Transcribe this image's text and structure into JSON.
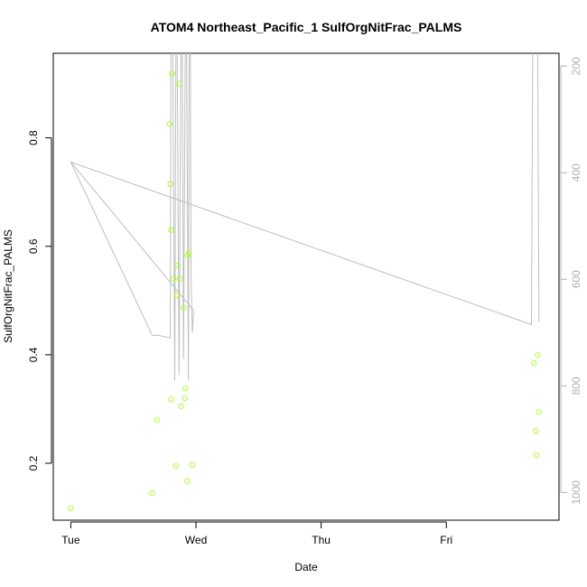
{
  "chart_data": {
    "type": "scatter",
    "title": "ATOM4 Northeast_Pacific_1 SulfOrgNitFrac_PALMS",
    "xlabel": "Date",
    "ylabel": "SulfOrgNitFrac_PALMS",
    "x_ticks": [
      {
        "x": 0,
        "label": "Tue"
      },
      {
        "x": 1,
        "label": "Wed"
      },
      {
        "x": 2,
        "label": "Thu"
      },
      {
        "x": 3,
        "label": "Fri"
      }
    ],
    "y_ticks": [
      0.2,
      0.4,
      0.6,
      0.8
    ],
    "y_tick_labels": [
      "0.2",
      "0.4",
      "0.6",
      "0.8"
    ],
    "y2_ticks": [
      200,
      400,
      600,
      800,
      1000
    ],
    "y2_tick_labels": [
      "200",
      "400",
      "600",
      "800",
      "1000"
    ],
    "xlim": [
      -0.14,
      3.9
    ],
    "ylim": [
      0.095,
      0.956
    ],
    "y2lim": [
      1052,
      176
    ],
    "colors": {
      "points": "#adff2f",
      "line": "#bebebe",
      "right_axis": "#b0b0b0"
    },
    "series": [
      {
        "values": [
          [
            0.0,
            0.117
          ],
          [
            0.65,
            0.145
          ],
          [
            0.69,
            0.28
          ],
          [
            0.79,
            0.826
          ],
          [
            0.795,
            0.715
          ],
          [
            0.8,
            0.63
          ],
          [
            0.8,
            0.318
          ],
          [
            0.81,
            0.918
          ],
          [
            0.82,
            0.54
          ],
          [
            0.84,
            0.195
          ],
          [
            0.845,
            0.51
          ],
          [
            0.855,
            0.565
          ],
          [
            0.86,
            0.9
          ],
          [
            0.87,
            0.54
          ],
          [
            0.88,
            0.305
          ],
          [
            0.9,
            0.487
          ],
          [
            0.91,
            0.32
          ],
          [
            0.915,
            0.338
          ],
          [
            0.93,
            0.167
          ],
          [
            0.935,
            0.583
          ],
          [
            0.945,
            0.588
          ],
          [
            0.97,
            0.197
          ],
          [
            3.7,
            0.385
          ],
          [
            3.715,
            0.26
          ],
          [
            3.72,
            0.215
          ],
          [
            3.73,
            0.4
          ],
          [
            3.74,
            0.295
          ]
        ]
      },
      {
        "axis": "right",
        "values": [
          [
            0.0,
            380
          ],
          [
            0.98,
            658
          ],
          [
            0.98,
            667
          ],
          [
            0.97,
            700
          ],
          [
            0.96,
            590
          ],
          [
            0.955,
            160
          ],
          [
            0.945,
            160
          ],
          [
            0.94,
            790
          ],
          [
            0.925,
            170
          ],
          [
            0.915,
            160
          ],
          [
            0.9,
            750
          ],
          [
            0.89,
            160
          ],
          [
            0.88,
            160
          ],
          [
            0.865,
            780
          ],
          [
            0.85,
            160
          ],
          [
            0.84,
            160
          ],
          [
            0.83,
            790
          ],
          [
            0.815,
            160
          ],
          [
            0.8,
            160
          ],
          [
            0.795,
            710
          ],
          [
            0.7,
            705
          ],
          [
            0.65,
            705
          ],
          [
            0.0,
            380
          ],
          [
            3.68,
            685
          ],
          [
            3.69,
            160
          ],
          [
            3.73,
            160
          ],
          [
            3.74,
            680
          ]
        ]
      }
    ]
  }
}
